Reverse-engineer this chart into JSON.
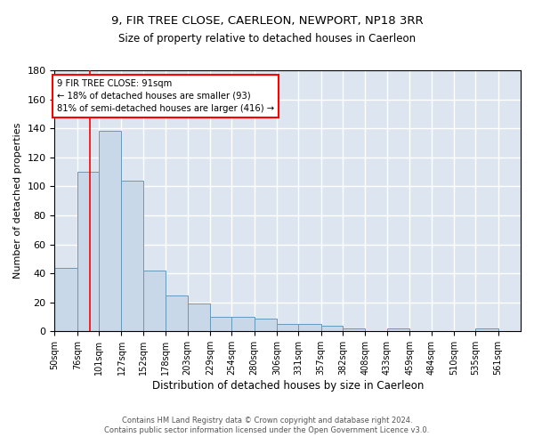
{
  "title1": "9, FIR TREE CLOSE, CAERLEON, NEWPORT, NP18 3RR",
  "title2": "Size of property relative to detached houses in Caerleon",
  "xlabel": "Distribution of detached houses by size in Caerleon",
  "ylabel": "Number of detached properties",
  "footer1": "Contains HM Land Registry data © Crown copyright and database right 2024.",
  "footer2": "Contains public sector information licensed under the Open Government Licence v3.0.",
  "annotation_line1": "9 FIR TREE CLOSE: 91sqm",
  "annotation_line2": "← 18% of detached houses are smaller (93)",
  "annotation_line3": "81% of semi-detached houses are larger (416) →",
  "bin_labels": [
    "50sqm",
    "76sqm",
    "101sqm",
    "127sqm",
    "152sqm",
    "178sqm",
    "203sqm",
    "229sqm",
    "254sqm",
    "280sqm",
    "306sqm",
    "331sqm",
    "357sqm",
    "382sqm",
    "408sqm",
    "433sqm",
    "459sqm",
    "484sqm",
    "510sqm",
    "535sqm",
    "561sqm"
  ],
  "bar_heights": [
    44,
    110,
    138,
    104,
    42,
    25,
    19,
    10,
    10,
    9,
    5,
    5,
    4,
    2,
    0,
    2,
    0,
    0,
    0,
    2,
    0
  ],
  "bar_color": "#c8d8e8",
  "bar_edge_color": "#6699bb",
  "bin_edges": [
    50,
    76,
    101,
    127,
    152,
    178,
    203,
    229,
    254,
    280,
    306,
    331,
    357,
    382,
    408,
    433,
    459,
    484,
    510,
    535,
    561,
    587
  ],
  "ylim": [
    0,
    180
  ],
  "yticks": [
    0,
    20,
    40,
    60,
    80,
    100,
    120,
    140,
    160,
    180
  ],
  "grid_color": "#ffffff",
  "bg_color": "#dde6f0"
}
